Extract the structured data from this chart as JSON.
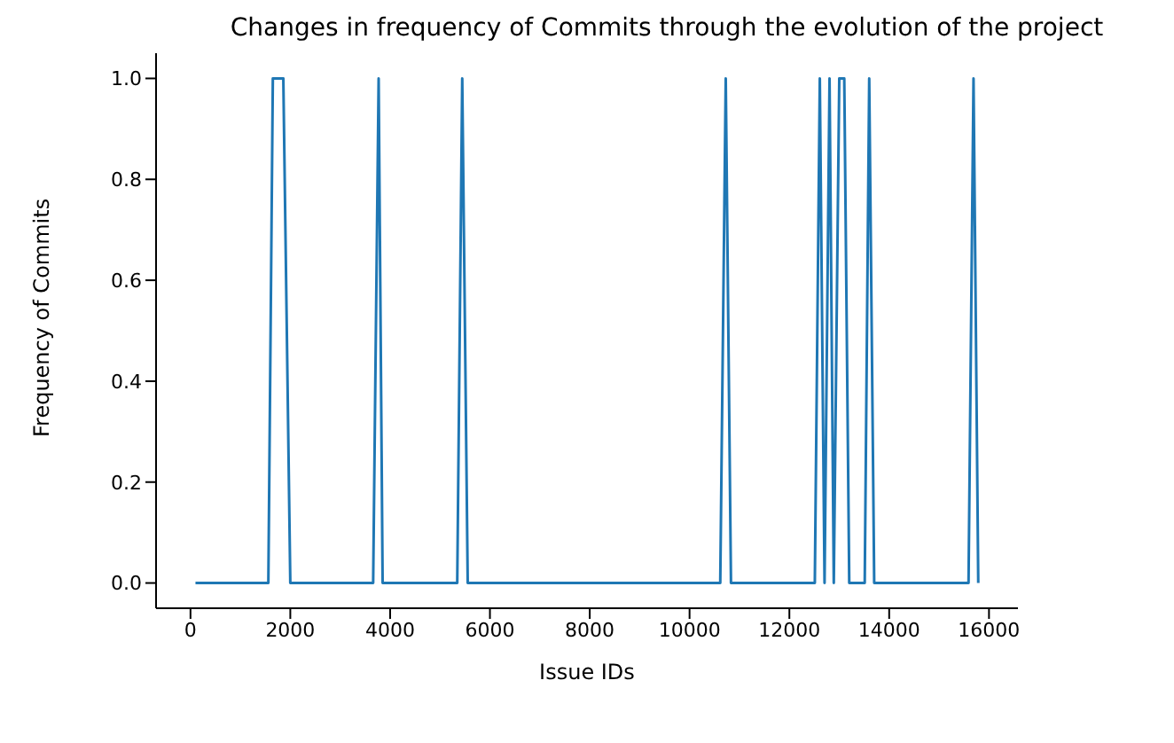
{
  "chart_data": {
    "type": "line",
    "title": "Changes in frequency of Commits through the evolution of the project",
    "xlabel": "Issue IDs",
    "ylabel": "Frequency of Commits",
    "x": [
      100,
      1560,
      1650,
      1860,
      2000,
      3660,
      3770,
      3850,
      5345,
      5445,
      5555,
      10615,
      10725,
      10830,
      12510,
      12610,
      12705,
      12805,
      12890,
      13000,
      13100,
      13200,
      13510,
      13600,
      13700,
      15590,
      15690,
      15785
    ],
    "series": [
      {
        "color": "#1f77b4",
        "values": [
          0,
          0,
          1,
          1,
          0,
          0,
          1,
          0,
          0,
          1,
          0,
          0,
          1,
          0,
          0,
          1,
          0,
          1,
          0,
          1,
          1,
          0,
          0,
          1,
          0,
          0,
          1,
          0
        ]
      }
    ],
    "xlim": [
      -690,
      16580
    ],
    "xticks": [
      0,
      2000,
      4000,
      6000,
      8000,
      10000,
      12000,
      14000,
      16000
    ],
    "ylim": [
      -0.05,
      1.05
    ],
    "yticks": [
      {
        "value": 0,
        "label": "0.0"
      },
      {
        "value": 0.2,
        "label": "0.2"
      },
      {
        "value": 0.4,
        "label": "0.4"
      },
      {
        "value": 0.6,
        "label": "0.6"
      },
      {
        "value": 0.8,
        "label": "0.8"
      },
      {
        "value": 1,
        "label": "1.0"
      }
    ],
    "grid": false,
    "legend": false,
    "marker": "none",
    "line_style": "solid"
  }
}
